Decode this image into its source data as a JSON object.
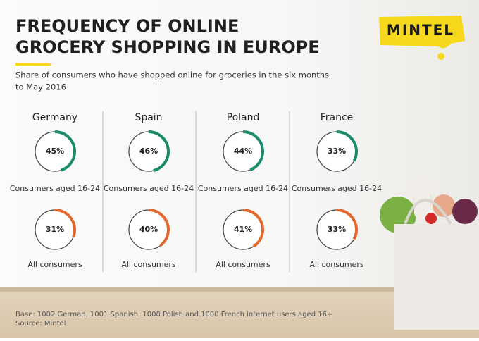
{
  "header": {
    "title_lines": [
      "FREQUENCY OF ONLINE",
      "GROCERY SHOPPING IN EUROPE"
    ],
    "subtitle_lines": [
      "Share of consumers who have shopped online for groceries in the six months",
      "to May 2016"
    ],
    "logo": "MINTEL"
  },
  "chart_data": {
    "type": "donut-grid",
    "categories": [
      "Germany",
      "Spain",
      "Poland",
      "France"
    ],
    "series": [
      {
        "name": "Consumers aged 16-24",
        "color": "#1b8c6b",
        "values": [
          45,
          46,
          44,
          33
        ],
        "value_labels": [
          "45%",
          "46%",
          "44%",
          "33%"
        ]
      },
      {
        "name": "All consumers",
        "color": "#e2692b",
        "values": [
          31,
          40,
          41,
          33
        ],
        "value_labels": [
          "31%",
          "40%",
          "41%",
          "33%"
        ]
      }
    ]
  },
  "footer": {
    "base": "Base: 1002 German, 1001 Spanish, 1000 Polish and 1000 French internet users aged 16+",
    "source": "Source: Mintel"
  }
}
